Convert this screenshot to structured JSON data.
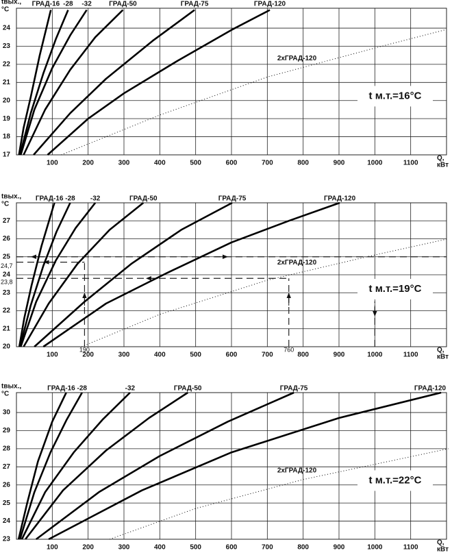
{
  "chart_data": [
    {
      "type": "line",
      "ylabel": [
        "tвых.,",
        "°C"
      ],
      "xlabel": [
        "Q,",
        "кВт"
      ],
      "annotation": "t м.т.=16°C",
      "xlim": [
        0,
        1200
      ],
      "ylim": [
        17,
        25.1
      ],
      "xticks": [
        100,
        200,
        300,
        400,
        500,
        600,
        700,
        800,
        900,
        1000,
        1100
      ],
      "yticks": [
        17,
        18,
        19,
        20,
        21,
        22,
        23,
        24
      ],
      "grid": true,
      "series": [
        {
          "name": "ГРАД-16",
          "color": "#000000",
          "style": "solid",
          "x": [
            7,
            20,
            40,
            65,
            96
          ],
          "values": [
            17,
            18.5,
            20.2,
            22.5,
            25
          ]
        },
        {
          "name": "-28",
          "color": "#000000",
          "style": "solid",
          "x": [
            10,
            40,
            75,
            110,
            144
          ],
          "values": [
            17,
            19.3,
            21.5,
            23.4,
            25
          ]
        },
        {
          "name": "-32",
          "color": "#000000",
          "style": "solid",
          "x": [
            12,
            50,
            100,
            150,
            196
          ],
          "values": [
            17,
            19.5,
            21.8,
            23.6,
            25
          ]
        },
        {
          "name": "ГРАД-50",
          "color": "#000000",
          "style": "solid",
          "x": [
            20,
            80,
            150,
            220,
            297
          ],
          "values": [
            17,
            19.5,
            21.7,
            23.5,
            25
          ]
        },
        {
          "name": "ГРАД-75",
          "color": "#000000",
          "style": "solid",
          "x": [
            48,
            150,
            250,
            380,
            497
          ],
          "values": [
            17,
            19.3,
            21.2,
            23.3,
            25
          ]
        },
        {
          "name": "ГРАД-120",
          "color": "#000000",
          "style": "solid",
          "x": [
            87,
            200,
            300,
            450,
            600,
            707
          ],
          "values": [
            17,
            19,
            20.4,
            22.2,
            23.9,
            25
          ]
        },
        {
          "name": "2хГРАД-120",
          "color": "#000000",
          "style": "dotted",
          "x": [
            125,
            400,
            700,
            1000,
            1195
          ],
          "values": [
            17,
            19.2,
            21.3,
            22.9,
            23.9
          ]
        }
      ]
    },
    {
      "type": "line",
      "ylabel": [
        "tвых.,",
        "°C"
      ],
      "xlabel": [
        "Q,",
        "кВт"
      ],
      "annotation": "t м.т.=19°C",
      "xlim": [
        0,
        1200
      ],
      "ylim": [
        20,
        28
      ],
      "xticks": [
        100,
        200,
        300,
        400,
        500,
        600,
        700,
        800,
        900,
        1000,
        1100
      ],
      "yticks": [
        20,
        21,
        22,
        23,
        24,
        25,
        26,
        27
      ],
      "grid": true,
      "series": [
        {
          "name": "ГРАД-16",
          "color": "#000000",
          "style": "solid",
          "x": [
            8,
            22,
            42,
            70,
            106
          ],
          "values": [
            20,
            21.6,
            23.4,
            25.6,
            28
          ]
        },
        {
          "name": "-28",
          "color": "#000000",
          "style": "solid",
          "x": [
            10,
            40,
            75,
            112,
            150
          ],
          "values": [
            20,
            22.3,
            24.5,
            26.4,
            28
          ]
        },
        {
          "name": "-32",
          "color": "#000000",
          "style": "solid",
          "x": [
            12,
            55,
            110,
            165,
            220
          ],
          "values": [
            20,
            22.5,
            24.8,
            26.6,
            28
          ]
        },
        {
          "name": "ГРАД-50",
          "color": "#000000",
          "style": "solid",
          "x": [
            20,
            90,
            170,
            260,
            354
          ],
          "values": [
            20,
            22.4,
            24.6,
            26.5,
            28
          ]
        },
        {
          "name": "ГРАД-75",
          "color": "#000000",
          "style": "solid",
          "x": [
            50,
            190,
            320,
            460,
            602
          ],
          "values": [
            20,
            22.5,
            24.6,
            26.5,
            28
          ]
        },
        {
          "name": "ГРАД-120",
          "color": "#000000",
          "style": "solid",
          "x": [
            75,
            250,
            420,
            600,
            760,
            902
          ],
          "values": [
            20,
            22.4,
            24.1,
            25.8,
            27,
            28
          ]
        },
        {
          "name": "2хГРАД-120",
          "color": "#000000",
          "style": "dotted",
          "x": [
            182,
            400,
            700,
            1000,
            1205
          ],
          "values": [
            20,
            21.8,
            23.7,
            25.1,
            26
          ]
        }
      ],
      "guides": [
        {
          "x": 190,
          "y": {
            "value": 24.7,
            "label": "24,7"
          }
        },
        {
          "x": 760,
          "y": {
            "value": 23.8,
            "label": "23,8"
          }
        }
      ],
      "hline": 25,
      "vline": 1000
    },
    {
      "type": "line",
      "ylabel": [
        "tвых.,",
        "°C"
      ],
      "xlabel": [
        "Q,",
        "кВт"
      ],
      "annotation": "t м.т.=22°C",
      "xlim": [
        0,
        1200
      ],
      "ylim": [
        23,
        31.1
      ],
      "xticks": [
        100,
        200,
        300,
        400,
        500,
        600,
        700,
        800,
        900,
        1000,
        1100
      ],
      "yticks": [
        23,
        24,
        25,
        26,
        27,
        28,
        29,
        30
      ],
      "grid": true,
      "series": [
        {
          "name": "ГРАД-16",
          "color": "#000000",
          "style": "solid",
          "x": [
            6,
            30,
            60,
            100,
            139
          ],
          "values": [
            23,
            25,
            27.3,
            29.5,
            31.1
          ]
        },
        {
          "name": "-28",
          "color": "#000000",
          "style": "solid",
          "x": [
            10,
            50,
            95,
            140,
            183
          ],
          "values": [
            23,
            25.6,
            27.8,
            29.6,
            31.1
          ]
        },
        {
          "name": "-32",
          "color": "#000000",
          "style": "solid",
          "x": [
            15,
            80,
            160,
            240,
            317
          ],
          "values": [
            23,
            25.6,
            27.8,
            29.6,
            31.1
          ]
        },
        {
          "name": "ГРАД-50",
          "color": "#000000",
          "style": "solid",
          "x": [
            25,
            130,
            250,
            370,
            478
          ],
          "values": [
            23,
            25.7,
            27.9,
            29.7,
            31.1
          ]
        },
        {
          "name": "ГРАД-75",
          "color": "#000000",
          "style": "solid",
          "x": [
            55,
            230,
            400,
            590,
            774
          ],
          "values": [
            23,
            25.6,
            27.6,
            29.5,
            31.1
          ]
        },
        {
          "name": "ГРАД-120",
          "color": "#000000",
          "style": "solid",
          "x": [
            90,
            350,
            600,
            900,
            1185
          ],
          "values": [
            23,
            25.7,
            27.8,
            29.7,
            31.1
          ]
        },
        {
          "name": "2хГРАД-120",
          "color": "#000000",
          "style": "dotted",
          "x": [
            260,
            500,
            800,
            1205
          ],
          "values": [
            23,
            24.7,
            26.3,
            28
          ]
        }
      ]
    }
  ]
}
